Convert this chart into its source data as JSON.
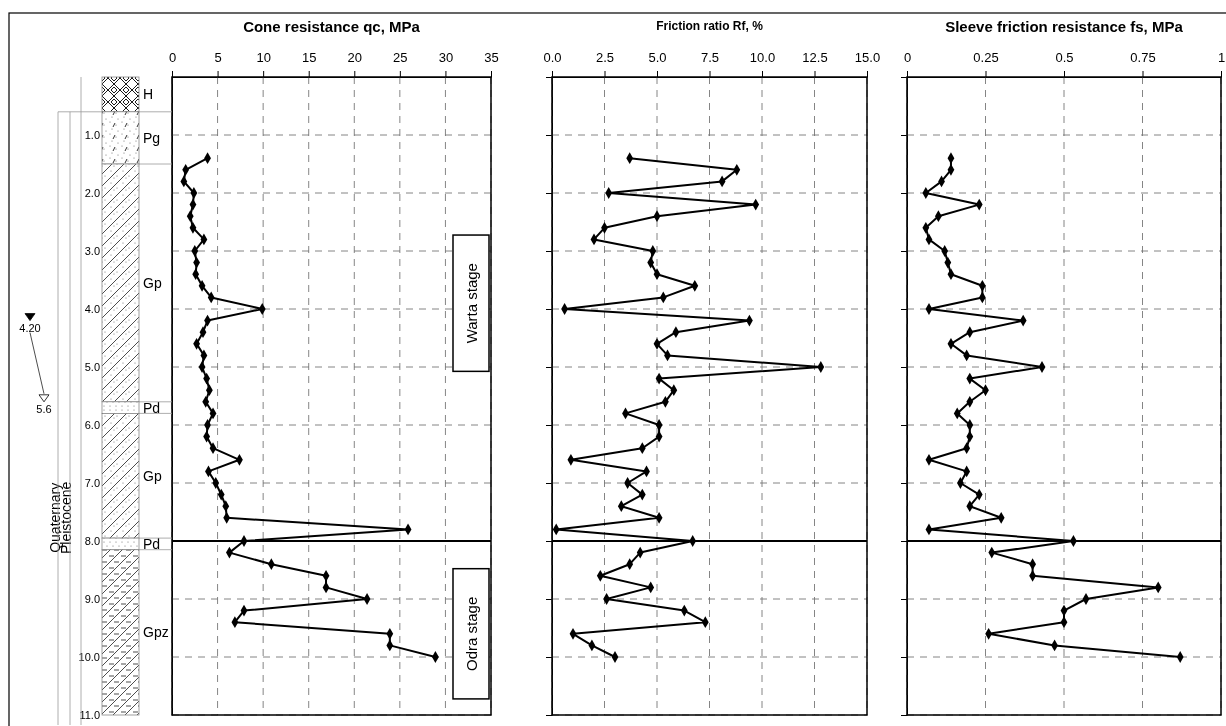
{
  "chart_data": [
    {
      "type": "line",
      "title": "Cone resistance qc, MPa",
      "xlim": [
        0,
        35
      ],
      "xticks": [
        0,
        5,
        10,
        15,
        20,
        25,
        30,
        35
      ],
      "ylim": [
        11,
        0
      ],
      "yticks": [
        {
          "value": 1,
          "label": "1.0"
        },
        {
          "value": 2,
          "label": "2.0"
        },
        {
          "value": 3,
          "label": "3.0"
        },
        {
          "value": 4,
          "label": "4.0"
        },
        {
          "value": 5,
          "label": "5.0"
        },
        {
          "value": 6,
          "label": "6.0"
        },
        {
          "value": 7,
          "label": "7.0"
        },
        {
          "value": 8,
          "label": "8.0"
        },
        {
          "value": 9,
          "label": "9.0"
        },
        {
          "value": 10,
          "label": "10.0"
        },
        {
          "value": 11,
          "label": "11.0"
        }
      ],
      "grid": true,
      "marker": "diamond",
      "series": [
        {
          "color": "#000000",
          "x": [
            3.9,
            1.5,
            1.3,
            2.4,
            2.3,
            2.0,
            2.3,
            3.5,
            2.5,
            2.7,
            2.6,
            3.3,
            4.3,
            9.9,
            3.9,
            3.4,
            2.7,
            3.5,
            3.3,
            3.8,
            4.1,
            3.7,
            4.5,
            3.9,
            3.8,
            4.5,
            7.4,
            4.0,
            4.8,
            5.4,
            5.9,
            6.0,
            25.9,
            7.9,
            6.3,
            10.9,
            16.9,
            16.9,
            21.4,
            7.9,
            6.9,
            23.9,
            23.9,
            28.9
          ],
          "values": [
            1.4,
            1.6,
            1.8,
            2.0,
            2.2,
            2.4,
            2.6,
            2.8,
            3.0,
            3.2,
            3.4,
            3.6,
            3.8,
            4.0,
            4.2,
            4.4,
            4.6,
            4.8,
            5.0,
            5.2,
            5.4,
            5.6,
            5.8,
            6.0,
            6.2,
            6.4,
            6.6,
            6.8,
            7.0,
            7.2,
            7.4,
            7.6,
            7.8,
            8.0,
            8.2,
            8.4,
            8.6,
            8.8,
            9.0,
            9.2,
            9.4,
            9.6,
            9.8,
            10.0
          ]
        }
      ],
      "ref_lines": [
        {
          "axis": "y",
          "value": 8
        }
      ],
      "annotations": [
        "H",
        "Pg",
        "Gp",
        "Pd",
        "Gp",
        "Pd",
        "Gpz",
        "Warta stage",
        "Odra stage",
        "Quaternary",
        "Pleistocene",
        "4.20",
        "5.6"
      ]
    },
    {
      "type": "line",
      "title": "Friction ratio Rf, %",
      "xlim": [
        0,
        15
      ],
      "xticks": [
        {
          "value": 0,
          "label": "0.0"
        },
        2.5,
        {
          "value": 5,
          "label": "5.0"
        },
        7.5,
        {
          "value": 10,
          "label": "10.0"
        },
        12.5,
        {
          "value": 15,
          "label": "15.0"
        }
      ],
      "ylim": [
        11,
        0
      ],
      "yticks": [
        1,
        2,
        3,
        4,
        5,
        6,
        7,
        8,
        9,
        10,
        11
      ],
      "tick_labels": "x",
      "grid": true,
      "marker": "diamond",
      "series": [
        {
          "color": "#000000",
          "x": [
            3.7,
            8.8,
            8.1,
            2.7,
            9.7,
            5.0,
            2.5,
            2.0,
            4.8,
            4.7,
            5.0,
            6.8,
            5.3,
            0.6,
            9.4,
            5.9,
            5.0,
            5.5,
            12.8,
            5.1,
            5.8,
            5.4,
            3.5,
            5.1,
            5.1,
            4.3,
            0.9,
            4.5,
            3.6,
            4.3,
            3.3,
            5.1,
            0.2,
            6.7,
            4.2,
            3.7,
            2.3,
            4.7,
            2.6,
            6.3,
            7.3,
            1.0,
            1.9,
            3.0
          ],
          "values": [
            1.4,
            1.6,
            1.8,
            2.0,
            2.2,
            2.4,
            2.6,
            2.8,
            3.0,
            3.2,
            3.4,
            3.6,
            3.8,
            4.0,
            4.2,
            4.4,
            4.6,
            4.8,
            5.0,
            5.2,
            5.4,
            5.6,
            5.8,
            6.0,
            6.2,
            6.4,
            6.6,
            6.8,
            7.0,
            7.2,
            7.4,
            7.6,
            7.8,
            8.0,
            8.2,
            8.4,
            8.6,
            8.8,
            9.0,
            9.2,
            9.4,
            9.6,
            9.8,
            10.0
          ]
        }
      ],
      "ref_lines": [
        {
          "axis": "y",
          "value": 8
        }
      ]
    },
    {
      "type": "line",
      "title": "Sleeve friction resistance fs, MPa",
      "xlim": [
        0,
        1
      ],
      "xticks": [
        0,
        0.25,
        0.5,
        0.75,
        1
      ],
      "ylim": [
        11,
        0
      ],
      "yticks": [
        1,
        2,
        3,
        4,
        5,
        6,
        7,
        8,
        9,
        10,
        11
      ],
      "tick_labels": "x",
      "grid": true,
      "marker": "diamond",
      "series": [
        {
          "color": "#000000",
          "x": [
            0.14,
            0.14,
            0.11,
            0.06,
            0.23,
            0.1,
            0.06,
            0.07,
            0.12,
            0.13,
            0.14,
            0.24,
            0.24,
            0.07,
            0.37,
            0.2,
            0.14,
            0.19,
            0.43,
            0.2,
            0.25,
            0.2,
            0.16,
            0.2,
            0.2,
            0.19,
            0.07,
            0.19,
            0.17,
            0.23,
            0.2,
            0.3,
            0.07,
            0.53,
            0.27,
            0.4,
            0.4,
            0.8,
            0.57,
            0.5,
            0.5,
            0.26,
            0.47,
            0.87
          ],
          "values": [
            1.4,
            1.6,
            1.8,
            2.0,
            2.2,
            2.4,
            2.6,
            2.8,
            3.0,
            3.2,
            3.4,
            3.6,
            3.8,
            4.0,
            4.2,
            4.4,
            4.6,
            4.8,
            5.0,
            5.2,
            5.4,
            5.6,
            5.8,
            6.0,
            6.2,
            6.4,
            6.6,
            6.8,
            7.0,
            7.2,
            7.4,
            7.6,
            7.8,
            8.0,
            8.2,
            8.4,
            8.6,
            8.8,
            9.0,
            9.2,
            9.4,
            9.6,
            9.8,
            10.0
          ]
        }
      ],
      "ref_lines": [
        {
          "axis": "y",
          "value": 8
        }
      ]
    }
  ]
}
